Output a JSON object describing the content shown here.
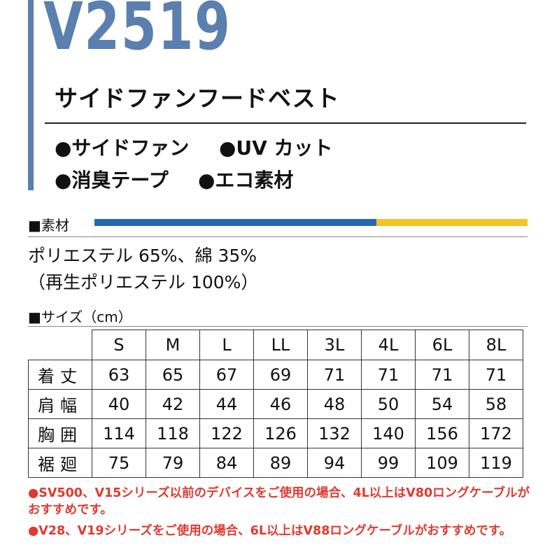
{
  "header": {
    "model": "V2519",
    "product_name": "サイドファンフードベスト",
    "accent_color": "#5b7fae"
  },
  "features": {
    "row1": [
      "●サイドファン",
      "●UV カット"
    ],
    "row2": [
      "●消臭テープ",
      "●エコ素材"
    ]
  },
  "material": {
    "label": "■素材",
    "line1": "ポリエステル 65%、綿 35%",
    "line2": "（再生ポリエステル 100%）",
    "bar_colors": [
      "#2469b3",
      "#f6c325"
    ]
  },
  "size": {
    "label": "■サイズ（cm）",
    "columns": [
      "S",
      "M",
      "L",
      "LL",
      "3L",
      "4L",
      "6L",
      "8L"
    ],
    "rows": [
      {
        "name": "着丈",
        "values": [
          "63",
          "65",
          "67",
          "69",
          "71",
          "71",
          "71",
          "71"
        ]
      },
      {
        "name": "肩幅",
        "values": [
          "40",
          "42",
          "44",
          "46",
          "48",
          "50",
          "54",
          "58"
        ]
      },
      {
        "name": "胸囲",
        "values": [
          "114",
          "118",
          "122",
          "126",
          "132",
          "140",
          "156",
          "172"
        ]
      },
      {
        "name": "裾廻",
        "values": [
          "75",
          "79",
          "84",
          "89",
          "94",
          "99",
          "109",
          "119"
        ]
      }
    ]
  },
  "notes": [
    "●SV500、V15シリーズ以前のデバイスをご使用の場合、4L以上はV80ロングケーブルがおすすめです。",
    "●V28、V19シリーズをご使用の場合、6L以上はV88ロングケーブルがおすすめです。"
  ],
  "note_color": "#e03a2f"
}
